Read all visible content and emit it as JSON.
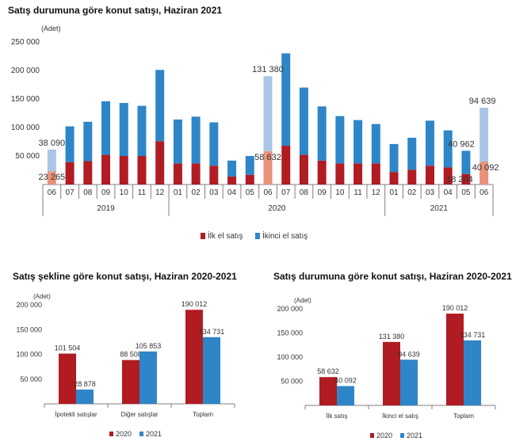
{
  "colors": {
    "first_sale": "#b01c22",
    "second_hand": "#2e86c8",
    "first_sale_light": "#e8937a",
    "second_hand_light": "#a9c6e8",
    "year_2020": "#b01c22",
    "year_2021": "#2e86c8",
    "axis": "#7f7f7f",
    "grid": "#d9d9d9"
  },
  "chart_data": [
    {
      "type": "bar",
      "stacked": true,
      "title": "Satış durumuna göre konut satışı, Haziran 2021",
      "ylabel": "(Adet)",
      "ylim": [
        0,
        250000
      ],
      "yticks": [
        50000,
        100000,
        150000,
        200000,
        250000
      ],
      "ytick_labels": [
        "50 000",
        "100 000",
        "150 000",
        "200 000",
        "250 000"
      ],
      "categories": [
        "06",
        "07",
        "08",
        "09",
        "10",
        "11",
        "12",
        "01",
        "02",
        "03",
        "04",
        "05",
        "06",
        "07",
        "08",
        "09",
        "10",
        "11",
        "12",
        "01",
        "02",
        "03",
        "04",
        "05",
        "06"
      ],
      "years": [
        {
          "label": "2019",
          "from": 0,
          "to": 6
        },
        {
          "label": "2020",
          "from": 7,
          "to": 18
        },
        {
          "label": "2021",
          "from": 19,
          "to": 24
        }
      ],
      "highlight_indices": [
        0,
        12,
        24
      ],
      "series": [
        {
          "name": "İlk el satış",
          "values": [
            23265,
            39000,
            41000,
            52000,
            50000,
            50000,
            76000,
            37000,
            37000,
            33000,
            14000,
            17000,
            58632,
            68000,
            52000,
            42000,
            37000,
            37000,
            37000,
            22000,
            26000,
            33000,
            30000,
            18204,
            40092
          ]
        },
        {
          "name": "İkinci el satış",
          "values": [
            38090,
            63000,
            69000,
            94000,
            93000,
            88000,
            125000,
            77000,
            82000,
            76000,
            28000,
            33000,
            131380,
            162000,
            118000,
            95000,
            83000,
            76000,
            69000,
            49000,
            56000,
            79000,
            65000,
            40962,
            94639
          ]
        }
      ],
      "data_labels": [
        {
          "text": "23 265",
          "index": 0,
          "series": 0
        },
        {
          "text": "38 090",
          "index": 0,
          "series": 1
        },
        {
          "text": "58 632",
          "index": 12,
          "series": 0
        },
        {
          "text": "131 380",
          "index": 12,
          "series": 1
        },
        {
          "text": "18 204",
          "index": 23,
          "series": 0
        },
        {
          "text": "40 962",
          "index": 23,
          "series": 1
        },
        {
          "text": "40 092",
          "index": 24,
          "series": 0
        },
        {
          "text": "94 639",
          "index": 24,
          "series": 1
        }
      ],
      "legend": [
        "İlk el satış",
        "İkinci el satış"
      ],
      "legend_position": "bottom"
    },
    {
      "type": "bar",
      "title": "Satış şekline göre konut satışı, Haziran 2020-2021",
      "ylabel": "(Adet)",
      "ylim": [
        0,
        200000
      ],
      "yticks": [
        50000,
        100000,
        150000,
        200000
      ],
      "ytick_labels": [
        "50 000",
        "100 000",
        "150 000",
        "200 000"
      ],
      "categories": [
        "İpotekli satışlar",
        "Diğer satışlar",
        "Toplam"
      ],
      "series": [
        {
          "name": "2020",
          "values": [
            101504,
            88508,
            190012
          ],
          "labels": [
            "101 504",
            "88 508",
            "190 012"
          ]
        },
        {
          "name": "2021",
          "values": [
            28878,
            105853,
            134731
          ],
          "labels": [
            "28 878",
            "105 853",
            "134 731"
          ]
        }
      ],
      "legend": [
        "2020",
        "2021"
      ],
      "legend_position": "bottom"
    },
    {
      "type": "bar",
      "title": "Satış durumuna göre konut satışı, Haziran 2020-2021",
      "ylabel": "(Adet)",
      "ylim": [
        0,
        200000
      ],
      "yticks": [
        50000,
        100000,
        150000,
        200000
      ],
      "ytick_labels": [
        "50 000",
        "100 000",
        "150 000",
        "200 000"
      ],
      "categories": [
        "İlk satış",
        "İkinci el satış",
        "Toplam"
      ],
      "series": [
        {
          "name": "2020",
          "values": [
            58632,
            131380,
            190012
          ],
          "labels": [
            "58 632",
            "131 380",
            "190 012"
          ]
        },
        {
          "name": "2021",
          "values": [
            40092,
            94639,
            134731
          ],
          "labels": [
            "40 092",
            "94 639",
            "134 731"
          ]
        }
      ],
      "legend": [
        "2020",
        "2021"
      ],
      "legend_position": "bottom"
    }
  ]
}
